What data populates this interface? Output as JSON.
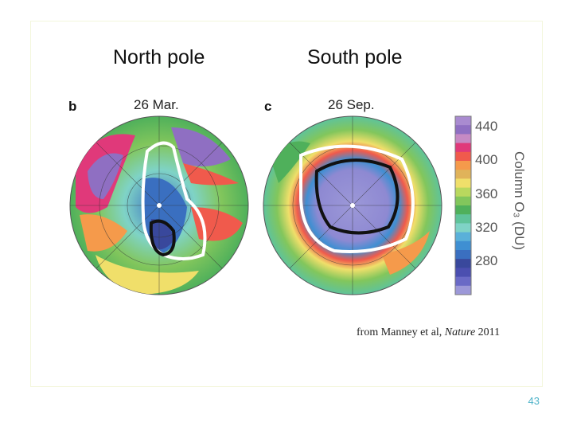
{
  "titles": {
    "north": "North pole",
    "south": "South pole"
  },
  "panels": [
    {
      "letter": "b",
      "date": "26 Mar."
    },
    {
      "letter": "c",
      "date": "26 Sep."
    }
  ],
  "colorbar": {
    "title": "Column O₃ (DU)",
    "ticks": [
      "440",
      "400",
      "360",
      "320",
      "280"
    ],
    "colors": [
      "#a98bd0",
      "#8f6fc2",
      "#c68ac4",
      "#e0397a",
      "#f05a4c",
      "#f59a4b",
      "#e0b35a",
      "#f0df6a",
      "#b9d85e",
      "#82c65c",
      "#4fb05b",
      "#5fc39a",
      "#7fd3c6",
      "#5ab0d9",
      "#3f8fd2",
      "#3a6fc0",
      "#39489c",
      "#4b4fb0",
      "#6a6ac6",
      "#9c98d8"
    ]
  },
  "caption": {
    "prefix": "from Manney et al, ",
    "journal": "Nature",
    "year": " 2011"
  },
  "page_number": "43"
}
